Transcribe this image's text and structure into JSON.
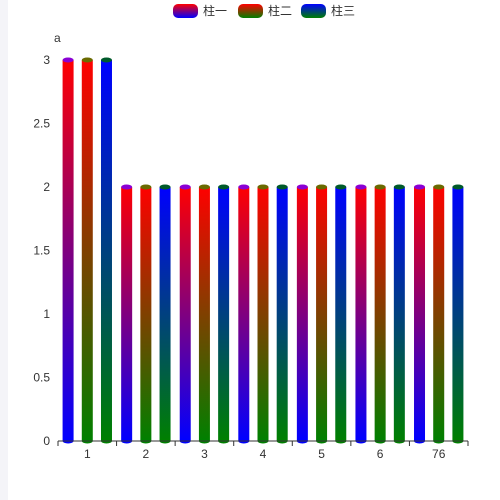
{
  "chart_data": {
    "type": "bar",
    "ylabel": "a",
    "ylim": [
      0,
      3
    ],
    "y_ticks": [
      "0",
      "0.5",
      "1",
      "1.5",
      "2",
      "2.5",
      "3"
    ],
    "categories": [
      "1",
      "2",
      "3",
      "4",
      "5",
      "6",
      "76"
    ],
    "legend_position": "top-center",
    "grid": false,
    "series": [
      {
        "name": "柱一",
        "values": [
          3,
          2,
          2,
          2,
          2,
          2,
          2
        ],
        "gradient": [
          "#ff0000",
          "#0000ff"
        ],
        "cap": "#8a00d4"
      },
      {
        "name": "柱二",
        "values": [
          3,
          2,
          2,
          2,
          2,
          2,
          2
        ],
        "gradient": [
          "#ff0000",
          "#008000"
        ],
        "cap": "#6a6a00"
      },
      {
        "name": "柱三",
        "values": [
          3,
          2,
          2,
          2,
          2,
          2,
          2
        ],
        "gradient": [
          "#0000ff",
          "#008000"
        ],
        "cap": "#005a2a"
      }
    ]
  }
}
